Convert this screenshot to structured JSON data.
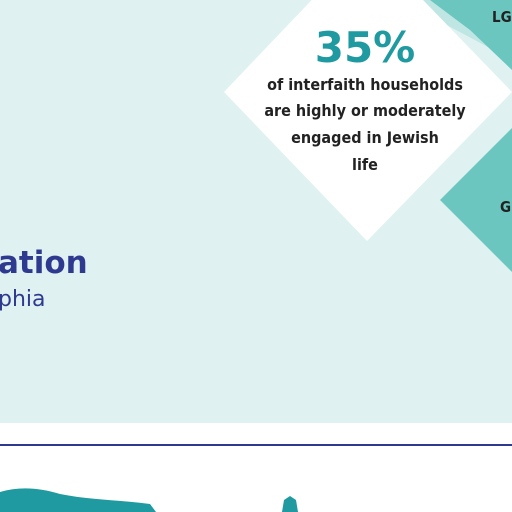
{
  "stat": {
    "value": "35%",
    "lines": [
      "of interfaith households",
      "are highly or moderately",
      "engaged in Jewish",
      "life"
    ]
  },
  "heading": {
    "title": "ation",
    "subtitle": "phia"
  },
  "side_labels": [
    "LG",
    "Gr"
  ]
}
